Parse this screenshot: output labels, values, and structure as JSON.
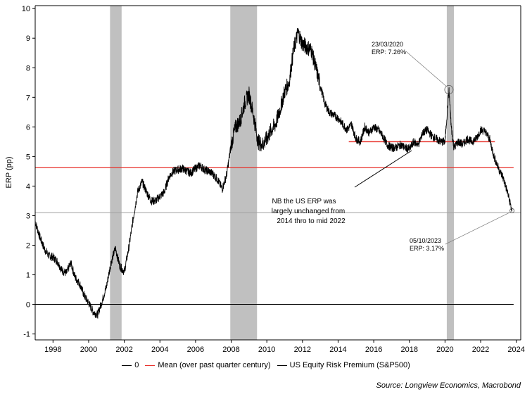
{
  "chart_data": {
    "type": "line",
    "title": "",
    "xlabel": "",
    "ylabel": "ERP (pp)",
    "xlim": [
      1997,
      2024.25
    ],
    "ylim": [
      -1.2,
      10.1
    ],
    "x_ticks": [
      "1998",
      "2000",
      "2002",
      "2004",
      "2006",
      "2008",
      "2010",
      "2012",
      "2014",
      "2016",
      "2018",
      "2020",
      "2022",
      "2024"
    ],
    "y_ticks": [
      "-1",
      "0",
      "1",
      "2",
      "3",
      "4",
      "5",
      "6",
      "7",
      "8",
      "9",
      "10"
    ],
    "recessions": [
      [
        2001.2,
        2001.85
      ],
      [
        2007.95,
        2009.45
      ],
      [
        2020.1,
        2020.5
      ]
    ],
    "series": [
      {
        "name": "0",
        "color": "#000000",
        "values": [
          [
            1997,
            0
          ],
          [
            2023.85,
            0
          ]
        ]
      },
      {
        "name": "Mean (over past quarter century)",
        "color": "#e8302a",
        "values": [
          [
            1997,
            4.62
          ],
          [
            2023.85,
            4.62
          ]
        ]
      },
      {
        "name": "US Equity Risk Premium (S&P500)",
        "color": "#000000",
        "values": [
          [
            1997.0,
            2.8
          ],
          [
            1997.25,
            2.3
          ],
          [
            1997.5,
            1.9
          ],
          [
            1997.75,
            1.65
          ],
          [
            1998.0,
            1.6
          ],
          [
            1998.25,
            1.45
          ],
          [
            1998.5,
            1.15
          ],
          [
            1998.75,
            1.05
          ],
          [
            1999.0,
            1.4
          ],
          [
            1999.25,
            0.9
          ],
          [
            1999.5,
            0.7
          ],
          [
            1999.75,
            0.3
          ],
          [
            2000.0,
            0.05
          ],
          [
            2000.25,
            -0.25
          ],
          [
            2000.5,
            -0.35
          ],
          [
            2000.75,
            0.1
          ],
          [
            2001.0,
            0.6
          ],
          [
            2001.25,
            1.4
          ],
          [
            2001.5,
            1.9
          ],
          [
            2001.75,
            1.3
          ],
          [
            2002.0,
            1.1
          ],
          [
            2002.25,
            1.9
          ],
          [
            2002.5,
            2.9
          ],
          [
            2002.75,
            3.8
          ],
          [
            2003.0,
            4.15
          ],
          [
            2003.25,
            3.8
          ],
          [
            2003.5,
            3.5
          ],
          [
            2003.75,
            3.5
          ],
          [
            2004.0,
            3.65
          ],
          [
            2004.25,
            3.8
          ],
          [
            2004.5,
            4.3
          ],
          [
            2004.75,
            4.5
          ],
          [
            2005.0,
            4.55
          ],
          [
            2005.25,
            4.6
          ],
          [
            2005.5,
            4.5
          ],
          [
            2005.75,
            4.45
          ],
          [
            2006.0,
            4.6
          ],
          [
            2006.25,
            4.7
          ],
          [
            2006.5,
            4.55
          ],
          [
            2006.75,
            4.5
          ],
          [
            2007.0,
            4.4
          ],
          [
            2007.25,
            4.2
          ],
          [
            2007.5,
            3.9
          ],
          [
            2007.75,
            4.4
          ],
          [
            2008.0,
            5.4
          ],
          [
            2008.25,
            6.0
          ],
          [
            2008.5,
            6.2
          ],
          [
            2008.75,
            6.8
          ],
          [
            2009.0,
            7.1
          ],
          [
            2009.25,
            6.4
          ],
          [
            2009.5,
            5.5
          ],
          [
            2009.75,
            5.4
          ],
          [
            2010.0,
            5.6
          ],
          [
            2010.25,
            5.9
          ],
          [
            2010.5,
            6.1
          ],
          [
            2010.75,
            6.6
          ],
          [
            2011.0,
            7.2
          ],
          [
            2011.25,
            7.5
          ],
          [
            2011.5,
            8.6
          ],
          [
            2011.75,
            9.2
          ],
          [
            2012.0,
            8.8
          ],
          [
            2012.25,
            8.7
          ],
          [
            2012.5,
            8.6
          ],
          [
            2012.75,
            8.0
          ],
          [
            2013.0,
            7.4
          ],
          [
            2013.25,
            6.8
          ],
          [
            2013.5,
            6.5
          ],
          [
            2013.75,
            6.4
          ],
          [
            2014.0,
            6.3
          ],
          [
            2014.25,
            6.1
          ],
          [
            2014.5,
            5.9
          ],
          [
            2014.75,
            6.1
          ],
          [
            2015.0,
            5.6
          ],
          [
            2015.25,
            5.5
          ],
          [
            2015.5,
            6.0
          ],
          [
            2015.75,
            5.8
          ],
          [
            2016.0,
            6.0
          ],
          [
            2016.25,
            5.9
          ],
          [
            2016.5,
            5.7
          ],
          [
            2016.75,
            5.4
          ],
          [
            2017.0,
            5.3
          ],
          [
            2017.25,
            5.3
          ],
          [
            2017.5,
            5.4
          ],
          [
            2017.75,
            5.3
          ],
          [
            2018.0,
            5.25
          ],
          [
            2018.25,
            5.5
          ],
          [
            2018.5,
            5.4
          ],
          [
            2018.75,
            5.8
          ],
          [
            2019.0,
            5.9
          ],
          [
            2019.25,
            5.7
          ],
          [
            2019.5,
            5.6
          ],
          [
            2019.75,
            5.5
          ],
          [
            2020.0,
            5.5
          ],
          [
            2020.22,
            7.26
          ],
          [
            2020.35,
            6.0
          ],
          [
            2020.5,
            5.3
          ],
          [
            2020.75,
            5.5
          ],
          [
            2021.0,
            5.4
          ],
          [
            2021.25,
            5.6
          ],
          [
            2021.5,
            5.5
          ],
          [
            2021.75,
            5.6
          ],
          [
            2022.0,
            5.9
          ],
          [
            2022.25,
            5.85
          ],
          [
            2022.5,
            5.6
          ],
          [
            2022.75,
            5.0
          ],
          [
            2023.0,
            4.6
          ],
          [
            2023.25,
            4.3
          ],
          [
            2023.5,
            3.8
          ],
          [
            2023.76,
            3.17
          ]
        ]
      }
    ],
    "segment_mean": {
      "from": 2014.6,
      "to": 2022.8,
      "value": 5.5
    },
    "annotations": [
      {
        "lines": [
          "23/03/2020",
          "ERP: 7.26%"
        ],
        "x": 2020.22,
        "y": 7.26
      },
      {
        "lines": [
          "05/10/2023",
          "ERP: 3.17%"
        ],
        "x": 2023.76,
        "y": 3.17
      },
      {
        "lines": [
          "NB the US ERP was",
          "largely unchanged from",
          "2014 thro to mid 2022"
        ]
      }
    ],
    "reference_level": 3.1
  },
  "legend": {
    "zero": "0",
    "mean": "Mean (over past quarter century)",
    "erp": "US Equity Risk Premium (S&P500)"
  },
  "source": "Source: Longview Economics, Macrobond",
  "colors": {
    "mean": "#e8302a",
    "recession": "#c0c0c0",
    "grid": "#999999"
  }
}
